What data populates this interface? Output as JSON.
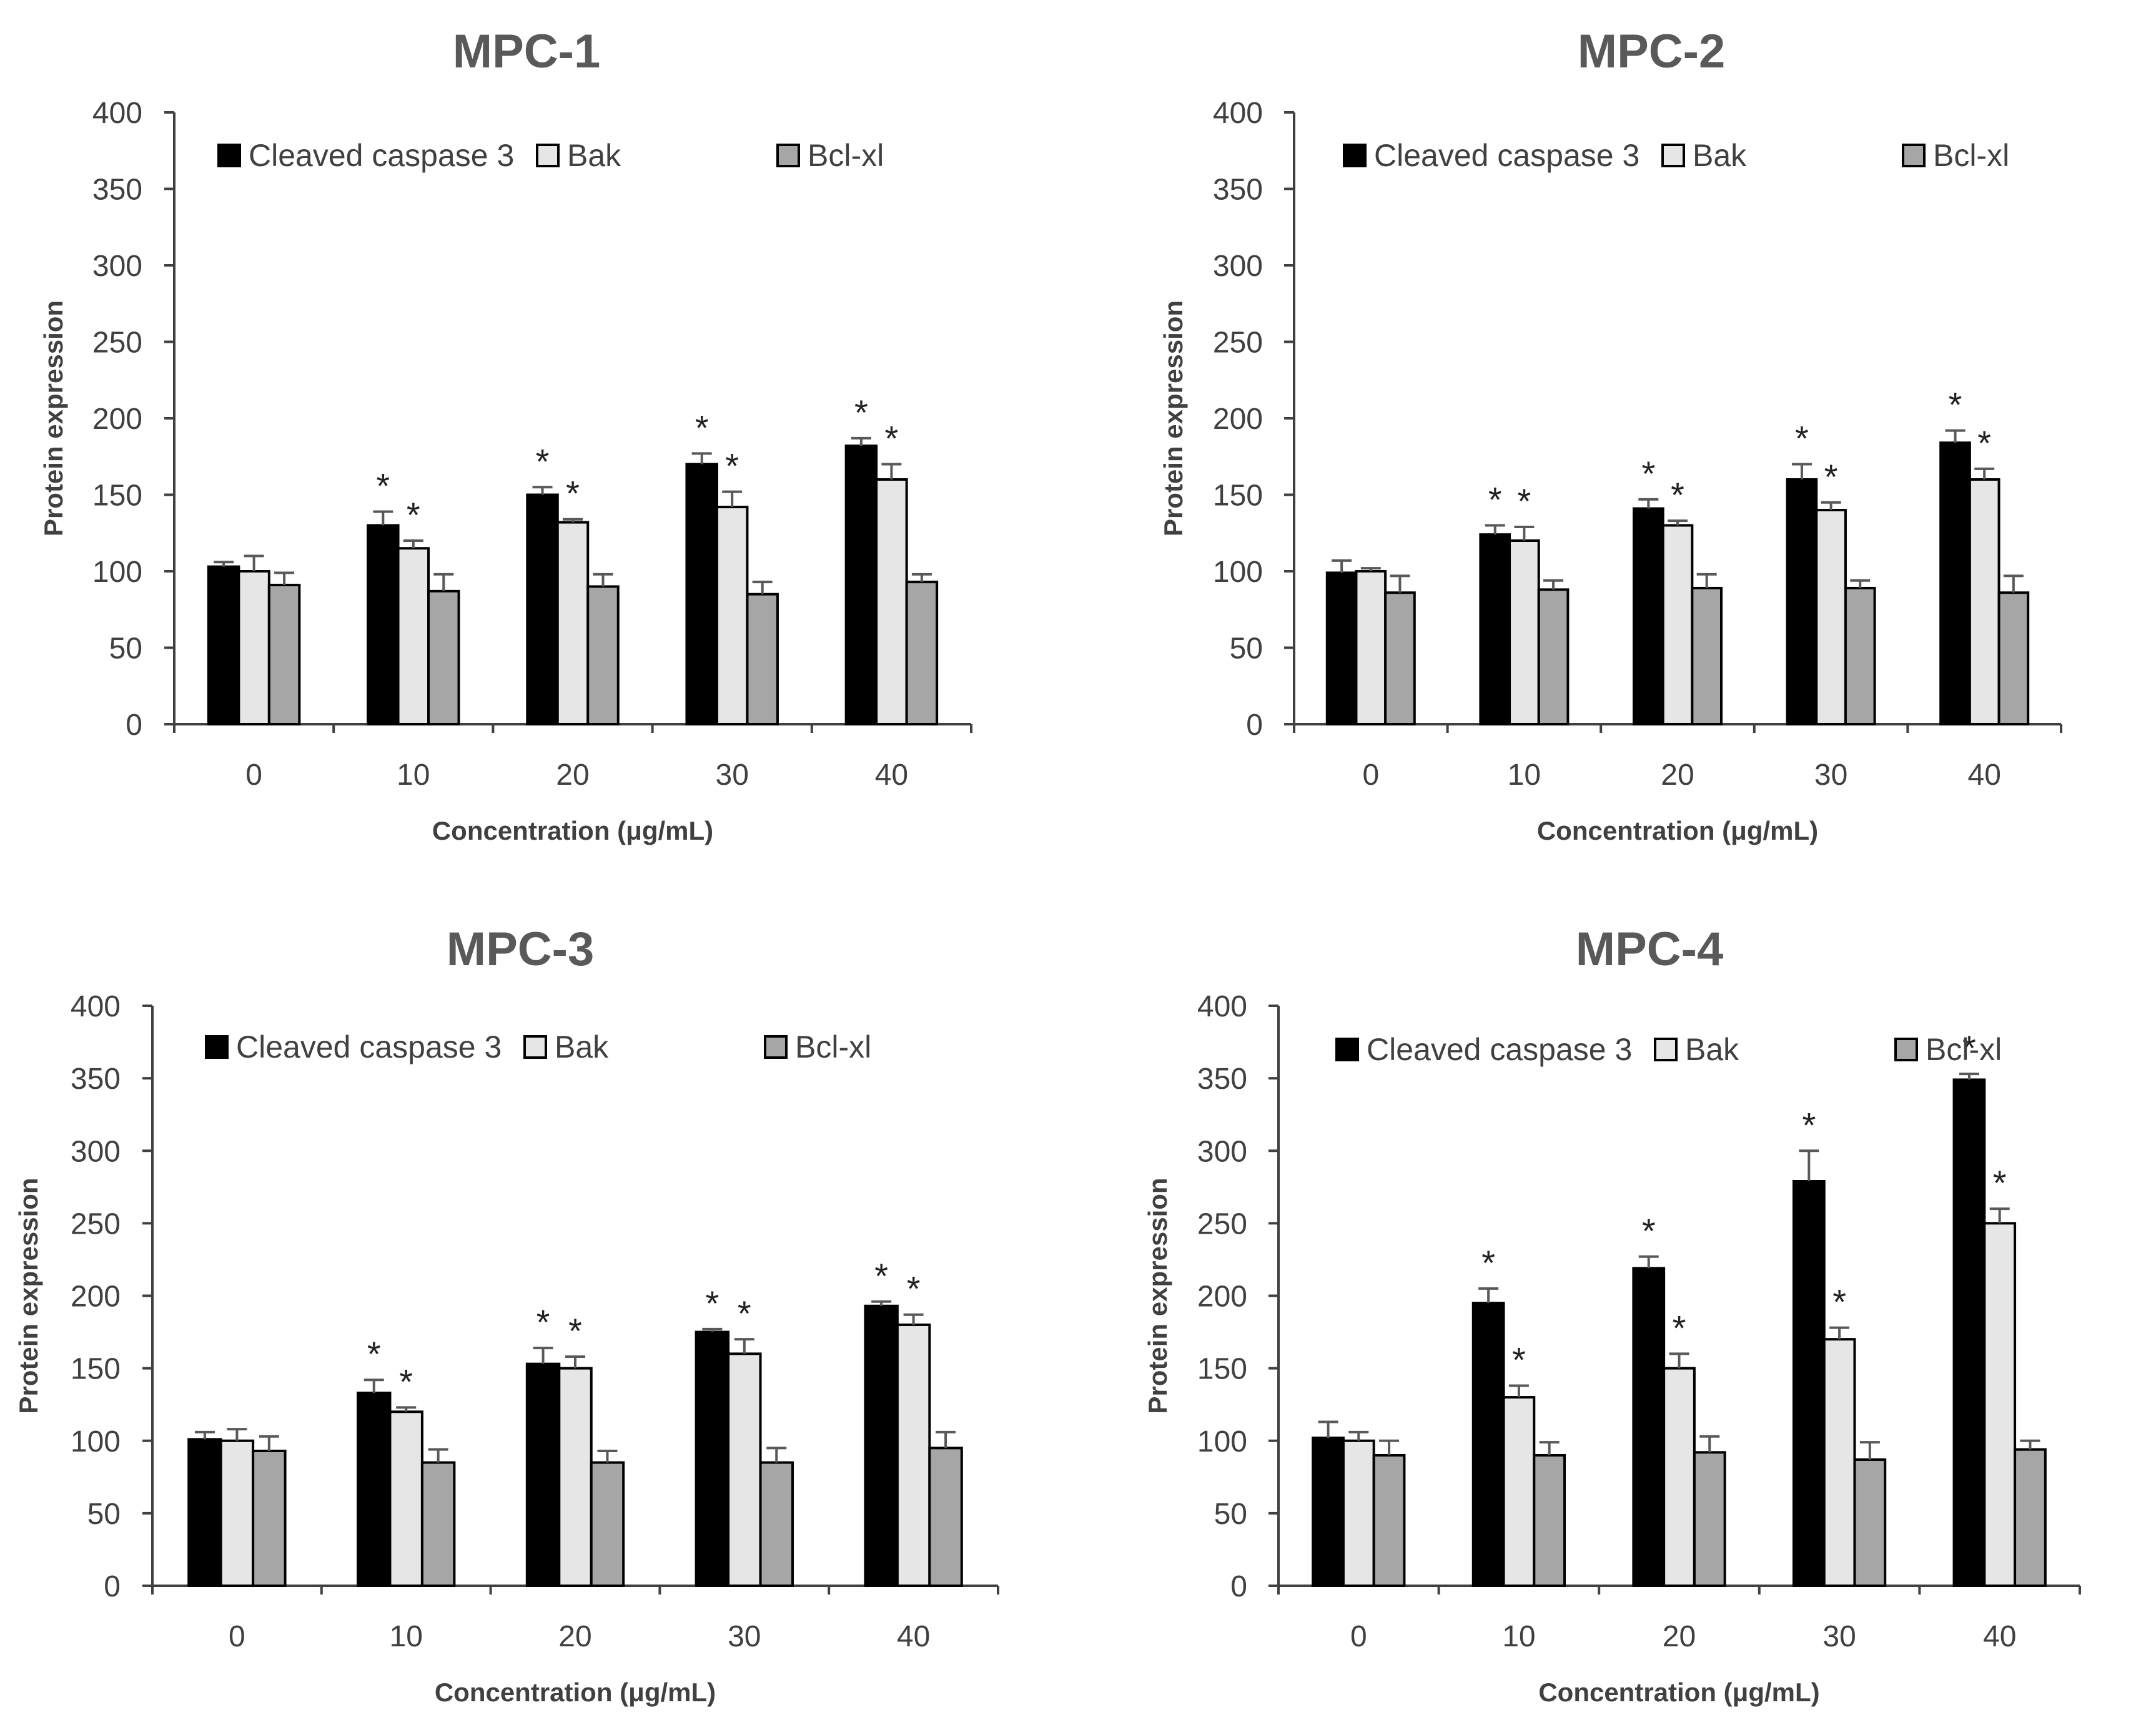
{
  "figure": {
    "background": "#ffffff"
  },
  "series_styles": [
    {
      "name": "Cleaved caspase 3",
      "color": "#000000"
    },
    {
      "name": "Bak",
      "color": "#e7e6e6"
    },
    {
      "name": "Bcl-xl",
      "color": "#a6a6a6"
    }
  ],
  "chart_data": [
    {
      "type": "bar",
      "title": "MPC-1",
      "xlabel": "Concentration (μg/mL)",
      "ylabel": "Protein expression",
      "ylim": [
        0,
        400
      ],
      "yticks": [
        0,
        50,
        100,
        150,
        200,
        250,
        300,
        350,
        400
      ],
      "categories": [
        "0",
        "10",
        "20",
        "30",
        "40"
      ],
      "legend": [
        "Cleaved caspase 3",
        "Bak",
        "Bcl-xl"
      ],
      "series": [
        {
          "name": "Cleaved caspase 3",
          "values": [
            103,
            130,
            150,
            170,
            182
          ],
          "errors": [
            3,
            9,
            5,
            7,
            5
          ],
          "significant": [
            false,
            true,
            true,
            true,
            true
          ]
        },
        {
          "name": "Bak",
          "values": [
            100,
            115,
            132,
            142,
            160
          ],
          "errors": [
            10,
            5,
            2,
            10,
            10
          ],
          "significant": [
            false,
            true,
            true,
            true,
            true
          ]
        },
        {
          "name": "Bcl-xl",
          "values": [
            91,
            87,
            90,
            85,
            93
          ],
          "errors": [
            8,
            11,
            8,
            8,
            5
          ],
          "significant": [
            false,
            false,
            false,
            false,
            false
          ]
        }
      ],
      "significance_marker": "*"
    },
    {
      "type": "bar",
      "title": "MPC-2",
      "xlabel": "Concentration (μg/mL)",
      "ylabel": "Protein expression",
      "ylim": [
        0,
        400
      ],
      "yticks": [
        0,
        50,
        100,
        150,
        200,
        250,
        300,
        350,
        400
      ],
      "categories": [
        "0",
        "10",
        "20",
        "30",
        "40"
      ],
      "legend": [
        "Cleaved caspase 3",
        "Bak",
        "Bcl-xl"
      ],
      "series": [
        {
          "name": "Cleaved caspase 3",
          "values": [
            99,
            124,
            141,
            160,
            184
          ],
          "errors": [
            8,
            6,
            6,
            10,
            8
          ],
          "significant": [
            false,
            true,
            true,
            true,
            true
          ]
        },
        {
          "name": "Bak",
          "values": [
            100,
            120,
            130,
            140,
            160
          ],
          "errors": [
            2,
            9,
            3,
            5,
            7
          ],
          "significant": [
            false,
            true,
            true,
            true,
            true
          ]
        },
        {
          "name": "Bcl-xl",
          "values": [
            86,
            88,
            89,
            89,
            86
          ],
          "errors": [
            11,
            6,
            9,
            5,
            11
          ],
          "significant": [
            false,
            false,
            false,
            false,
            false
          ]
        }
      ],
      "significance_marker": "*"
    },
    {
      "type": "bar",
      "title": "MPC-3",
      "xlabel": "Concentration (μg/mL)",
      "ylabel": "Protein expression",
      "ylim": [
        0,
        400
      ],
      "yticks": [
        0,
        50,
        100,
        150,
        200,
        250,
        300,
        350,
        400
      ],
      "categories": [
        "0",
        "10",
        "20",
        "30",
        "40"
      ],
      "legend": [
        "Cleaved caspase 3",
        "Bak",
        "Bcl-xl"
      ],
      "series": [
        {
          "name": "Cleaved caspase 3",
          "values": [
            101,
            133,
            153,
            175,
            193
          ],
          "errors": [
            5,
            9,
            11,
            2,
            3
          ],
          "significant": [
            false,
            true,
            true,
            true,
            true
          ]
        },
        {
          "name": "Bak",
          "values": [
            100,
            120,
            150,
            160,
            180
          ],
          "errors": [
            8,
            3,
            8,
            10,
            7
          ],
          "significant": [
            false,
            true,
            true,
            true,
            true
          ]
        },
        {
          "name": "Bcl-xl",
          "values": [
            93,
            85,
            85,
            85,
            95
          ],
          "errors": [
            10,
            9,
            8,
            10,
            11
          ],
          "significant": [
            false,
            false,
            false,
            false,
            false
          ]
        }
      ],
      "significance_marker": "*"
    },
    {
      "type": "bar",
      "title": "MPC-4",
      "xlabel": "Concentration (μg/mL)",
      "ylabel": "Protein expression",
      "ylim": [
        0,
        400
      ],
      "yticks": [
        0,
        50,
        100,
        150,
        200,
        250,
        300,
        350,
        400
      ],
      "categories": [
        "0",
        "10",
        "20",
        "30",
        "40"
      ],
      "legend": [
        "Cleaved caspase 3",
        "Bak",
        "Bcl-xl"
      ],
      "series": [
        {
          "name": "Cleaved caspase 3",
          "values": [
            102,
            195,
            219,
            279,
            349
          ],
          "errors": [
            11,
            10,
            8,
            21,
            4
          ],
          "significant": [
            false,
            true,
            true,
            true,
            true
          ]
        },
        {
          "name": "Bak",
          "values": [
            100,
            130,
            150,
            170,
            250
          ],
          "errors": [
            6,
            8,
            10,
            8,
            10
          ],
          "significant": [
            false,
            true,
            true,
            true,
            true
          ]
        },
        {
          "name": "Bcl-xl",
          "values": [
            90,
            90,
            92,
            87,
            94
          ],
          "errors": [
            10,
            9,
            11,
            12,
            6
          ],
          "significant": [
            false,
            false,
            false,
            false,
            false
          ]
        }
      ],
      "significance_marker": "*"
    }
  ]
}
